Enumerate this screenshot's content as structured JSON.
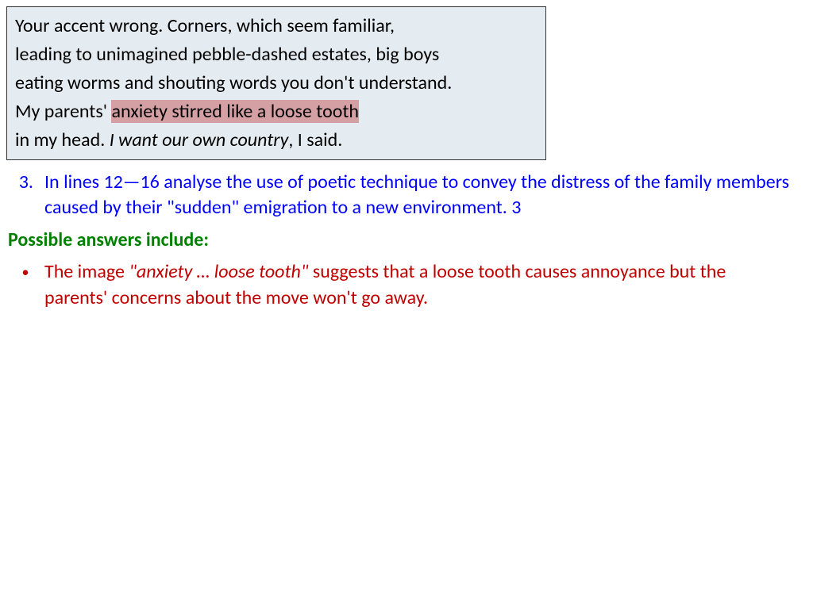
{
  "poem": {
    "line1": "Your accent wrong. Corners, which seem familiar,",
    "line2": "leading to unimagined pebble-dashed estates, big boys",
    "line3": "eating worms and shouting words you don't understand.",
    "line4_pre": "My parents' ",
    "line4_highlight": "anxiety stirred like a loose tooth",
    "line5_pre": "in my head. ",
    "line5_italic": "I want our own country",
    "line5_post": ", I said.",
    "bg_color": "#e5ecf1",
    "border_color": "#333333",
    "highlight_color": "#d4a0a4",
    "text_color": "#000000"
  },
  "question": {
    "number": "3.",
    "text": "In lines 12—16 analyse the use of poetic technique to convey the distress of the family members caused by their \"sudden\" emigration to a new environment.   3",
    "color": "#0000ff"
  },
  "answers_heading": {
    "text": "Possible answers include:",
    "color": "#008000"
  },
  "answer": {
    "bullet": "•",
    "pre": "The image ",
    "italic": "\"anxiety … loose tooth\"",
    "post": " suggests that a loose tooth causes annoyance but the parents' concerns about the move won't go away.",
    "color": "#c00000"
  }
}
